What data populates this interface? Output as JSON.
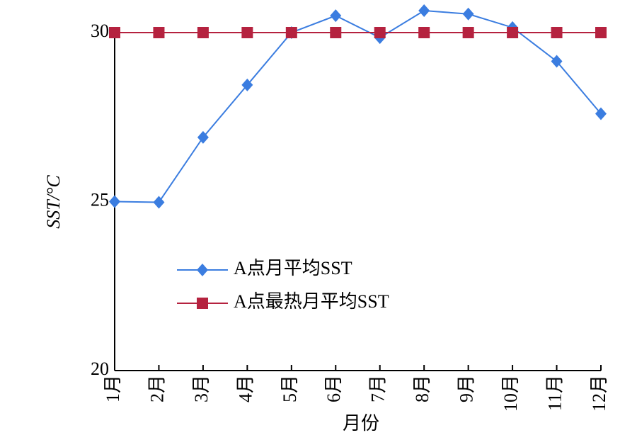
{
  "chart_data": {
    "type": "line",
    "xlabel": "月份",
    "ylabel": "SST/°C",
    "categories": [
      "1月",
      "2月",
      "3月",
      "4月",
      "5月",
      "6月",
      "7月",
      "8月",
      "9月",
      "10月",
      "11月",
      "12月"
    ],
    "series": [
      {
        "name": "A点月平均SST",
        "color": "#3b7de0",
        "marker": "diamond",
        "values": [
          25.0,
          24.98,
          26.9,
          28.45,
          30.0,
          30.5,
          29.85,
          30.65,
          30.55,
          30.15,
          29.15,
          27.6
        ]
      },
      {
        "name": "A点最热月平均SST",
        "color": "#b5223f",
        "marker": "square",
        "values": [
          30,
          30,
          30,
          30,
          30,
          30,
          30,
          30,
          30,
          30,
          30,
          30
        ]
      }
    ],
    "ylim": [
      20,
      30
    ],
    "yticks": [
      20,
      25,
      30
    ]
  }
}
